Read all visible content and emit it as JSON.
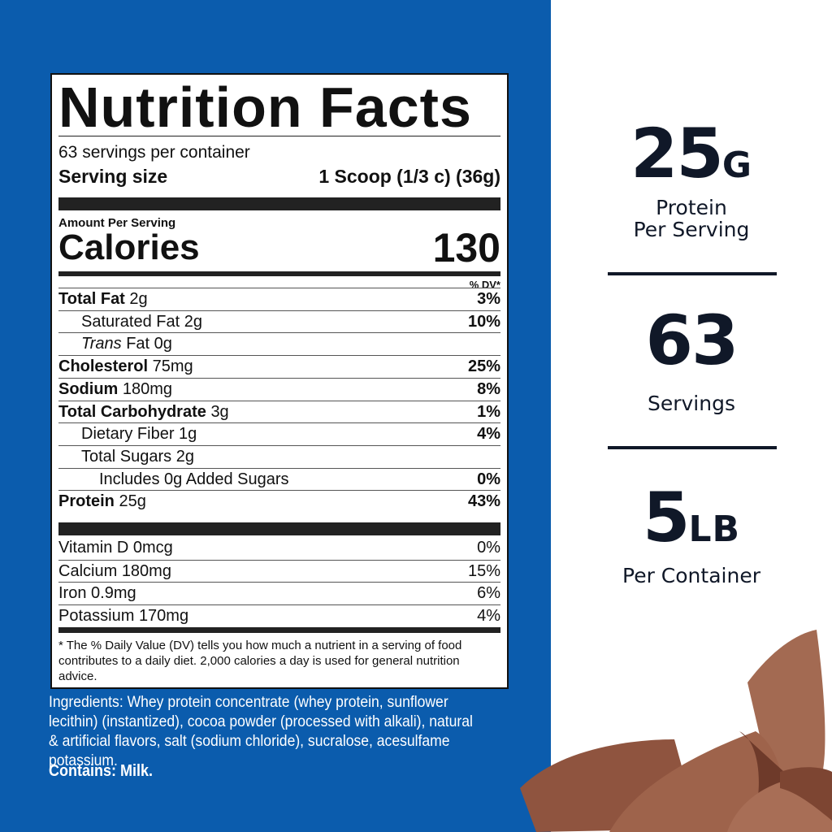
{
  "label": {
    "title": "Nutrition Facts",
    "servings": "63 servings per container",
    "serving_size_label": "Serving size",
    "serving_size_value": "1 Scoop (1/3 c) (36g)",
    "amount_per_serving": "Amount Per Serving",
    "calories_label": "Calories",
    "calories_value": "130",
    "dv_header": "% DV*",
    "nutrients": [
      {
        "name": "Total Fat",
        "amount": "2g",
        "dv": "3%",
        "bold": true,
        "indent": 0
      },
      {
        "name": "Saturated Fat",
        "amount": "2g",
        "dv": "10%",
        "bold": false,
        "indent": 1
      },
      {
        "name": "Trans",
        "name_suffix": "Fat",
        "amount": "0g",
        "dv": "",
        "bold": false,
        "indent": 1
      },
      {
        "name": "Cholesterol",
        "amount": "75mg",
        "dv": "25%",
        "bold": true,
        "indent": 0
      },
      {
        "name": "Sodium",
        "amount": "180mg",
        "dv": "8%",
        "bold": true,
        "indent": 0
      },
      {
        "name": "Total Carbohydrate",
        "amount": "3g",
        "dv": "1%",
        "bold": true,
        "indent": 0
      },
      {
        "name": "Dietary Fiber",
        "amount": "1g",
        "dv": "4%",
        "bold": false,
        "indent": 1
      },
      {
        "name": "Total Sugars",
        "amount": "2g",
        "dv": "",
        "bold": false,
        "indent": 1
      },
      {
        "name": "Includes 0g Added Sugars",
        "amount": "",
        "dv": "0%",
        "bold": false,
        "indent": 2
      },
      {
        "name": "Protein",
        "amount": "25g",
        "dv": "43%",
        "bold": true,
        "indent": 0
      }
    ],
    "vitamins": [
      {
        "name": "Vitamin D",
        "amount": "0mcg",
        "dv": "0%"
      },
      {
        "name": "Calcium",
        "amount": "180mg",
        "dv": "15%"
      },
      {
        "name": "Iron",
        "amount": "0.9mg",
        "dv": "6%"
      },
      {
        "name": "Potassium",
        "amount": "170mg",
        "dv": "4%"
      }
    ],
    "footnote": "* The % Daily Value (DV) tells you how much a nutrient in a serving of food contributes to a daily diet. 2,000 calories a day is used for general nutrition advice."
  },
  "ingredients": "Ingredients: Whey protein concentrate (whey protein, sunflower lecithin) (instantized), cocoa powder (processed with alkali), natural & artificial flavors, salt (sodium chloride), sucralose, acesulfame potassium.",
  "contains": "Contains: Milk.",
  "highlights": [
    {
      "value": "25",
      "unit": "G",
      "caption1": "Protein",
      "caption2": "Per Serving"
    },
    {
      "value": "63",
      "unit": "",
      "caption1": "Servings",
      "caption2": ""
    },
    {
      "value": "5",
      "unit": "LB",
      "caption1": "Per Container",
      "caption2": ""
    }
  ],
  "colors": {
    "panel_blue": "#0b5cad",
    "text_dark": "#101828",
    "chocolate": "#9c6048"
  }
}
